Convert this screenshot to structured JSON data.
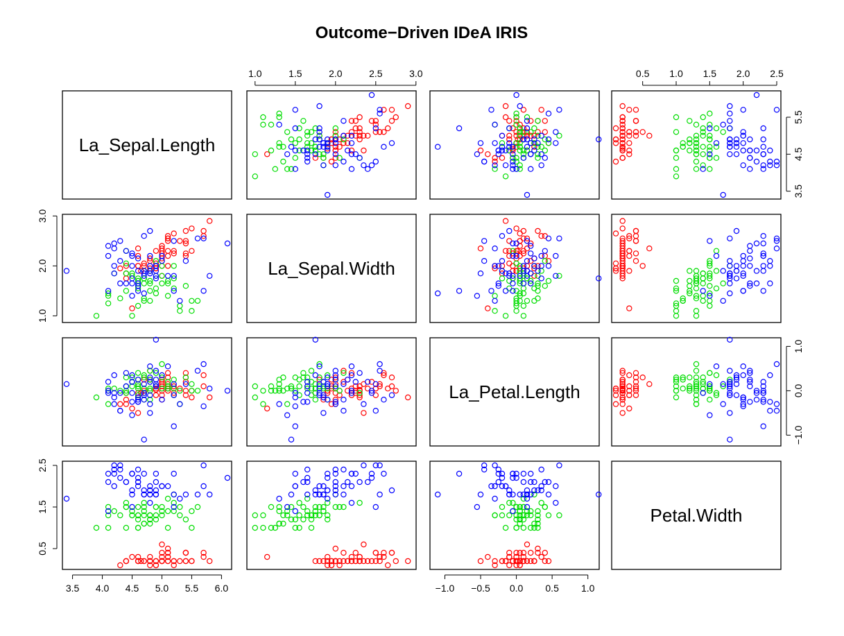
{
  "chart_data": {
    "type": "scatter",
    "subtype": "pairs",
    "title": "Outcome−Driven IDeA IRIS",
    "variables": [
      "La_Sepal.Length",
      "La_Sepal.Width",
      "La_Petal.Length",
      "Petal.Width"
    ],
    "ranges": {
      "La_Sepal.Length": [
        3.4,
        6.1
      ],
      "La_Sepal.Width": [
        0.95,
        2.95
      ],
      "La_Petal.Length": [
        -1.15,
        1.1
      ],
      "Petal.Width": [
        0.1,
        2.5
      ]
    },
    "tick_labels": {
      "La_Sepal.Length": [
        "3.5",
        "4.0",
        "4.5",
        "5.0",
        "5.5",
        "6.0"
      ],
      "La_Sepal.Width": [
        "1.0",
        "1.5",
        "2.0",
        "2.5",
        "3.0"
      ],
      "La_Petal.Length": [
        "−1.0",
        "−0.5",
        "0.0",
        "0.5",
        "1.0"
      ],
      "Petal.Width": [
        "0.5",
        "1.0",
        "1.5",
        "2.0",
        "2.5"
      ]
    },
    "side_ticks": {
      "La_Sepal.Length": [
        "3.5",
        "4.5",
        "5.5"
      ],
      "La_Sepal.Width": [
        "1.0",
        "2.0",
        "3.0"
      ],
      "La_Petal.Length": [
        "−1.0",
        "0.0",
        "1.0"
      ],
      "Petal.Width": [
        "0.5",
        "1.5",
        "2.5"
      ]
    },
    "grid": false,
    "legend": "none",
    "colors": {
      "setosa": "#ff0000",
      "versicolor": "#00dd00",
      "virginica": "#0000ff"
    },
    "series": [
      {
        "color": "#ff0000",
        "points": [
          [
            4.9,
            2.3,
            0.02,
            0.2
          ],
          [
            4.65,
            1.9,
            -0.05,
            0.2
          ],
          [
            4.7,
            2.05,
            0.0,
            0.2
          ],
          [
            4.6,
            2.0,
            0.15,
            0.2
          ],
          [
            5.0,
            2.4,
            0.05,
            0.2
          ],
          [
            5.4,
            2.7,
            0.3,
            0.4
          ],
          [
            4.6,
            2.2,
            -0.1,
            0.3
          ],
          [
            5.0,
            2.25,
            0.1,
            0.2
          ],
          [
            4.4,
            1.75,
            -0.05,
            0.2
          ],
          [
            4.9,
            1.95,
            0.05,
            0.1
          ],
          [
            5.4,
            2.45,
            0.2,
            0.2
          ],
          [
            4.8,
            2.15,
            0.25,
            0.2
          ],
          [
            4.8,
            1.9,
            0.0,
            0.1
          ],
          [
            4.3,
            1.95,
            -0.3,
            0.1
          ],
          [
            5.8,
            2.9,
            -0.15,
            0.2
          ],
          [
            5.7,
            2.7,
            0.1,
            0.4
          ],
          [
            5.4,
            2.5,
            -0.1,
            0.4
          ],
          [
            5.1,
            2.3,
            0.0,
            0.3
          ],
          [
            5.7,
            2.6,
            0.35,
            0.3
          ],
          [
            5.1,
            2.55,
            0.1,
            0.3
          ],
          [
            5.4,
            2.2,
            0.4,
            0.2
          ],
          [
            5.1,
            2.5,
            0.05,
            0.4
          ],
          [
            4.6,
            2.35,
            -0.5,
            0.2
          ],
          [
            5.1,
            2.0,
            0.3,
            0.5
          ],
          [
            4.8,
            2.1,
            0.45,
            0.2
          ],
          [
            5.0,
            1.8,
            0.25,
            0.2
          ],
          [
            5.0,
            2.1,
            0.2,
            0.4
          ],
          [
            5.2,
            2.3,
            0.1,
            0.2
          ],
          [
            5.2,
            2.25,
            -0.05,
            0.2
          ],
          [
            4.7,
            2.0,
            0.25,
            0.2
          ],
          [
            4.8,
            1.95,
            0.25,
            0.2
          ],
          [
            5.4,
            2.25,
            0.0,
            0.4
          ],
          [
            5.2,
            2.65,
            0.05,
            0.1
          ],
          [
            5.5,
            2.75,
            0.0,
            0.2
          ],
          [
            4.9,
            1.95,
            0.1,
            0.2
          ],
          [
            5.0,
            2.0,
            -0.2,
            0.2
          ],
          [
            5.5,
            2.3,
            -0.15,
            0.2
          ],
          [
            4.9,
            2.05,
            -0.1,
            0.1
          ],
          [
            4.4,
            1.85,
            -0.2,
            0.2
          ],
          [
            5.1,
            2.2,
            0.05,
            0.2
          ],
          [
            5.0,
            2.3,
            -0.1,
            0.3
          ],
          [
            4.5,
            1.15,
            -0.4,
            0.3
          ],
          [
            4.4,
            2.0,
            -0.3,
            0.2
          ],
          [
            5.0,
            2.35,
            0.15,
            0.6
          ],
          [
            5.1,
            2.6,
            0.4,
            0.4
          ],
          [
            4.8,
            1.9,
            0.0,
            0.3
          ],
          [
            5.1,
            2.55,
            0.15,
            0.2
          ],
          [
            4.6,
            2.0,
            -0.05,
            0.2
          ],
          [
            5.3,
            2.5,
            0.05,
            0.2
          ],
          [
            5.0,
            2.15,
            0.0,
            0.2
          ]
        ]
      },
      {
        "color": "#00dd00",
        "points": [
          [
            4.2,
            1.85,
            0.05,
            1.4
          ],
          [
            4.6,
            1.6,
            0.4,
            1.5
          ],
          [
            4.4,
            1.85,
            0.1,
            1.5
          ],
          [
            4.8,
            1.7,
            0.45,
            1.3
          ],
          [
            4.1,
            1.45,
            0.05,
            1.5
          ],
          [
            5.3,
            1.1,
            -0.3,
            1.3
          ],
          [
            4.7,
            1.9,
            0.35,
            1.6
          ],
          [
            4.6,
            1.55,
            0.25,
            1.0
          ],
          [
            4.1,
            1.4,
            -0.3,
            1.3
          ],
          [
            5.5,
            1.3,
            0.15,
            1.4
          ],
          [
            5.5,
            1.1,
            0.0,
            1.0
          ],
          [
            4.9,
            1.8,
            0.1,
            1.5
          ],
          [
            4.6,
            1.2,
            0.1,
            1.0
          ],
          [
            5.0,
            1.65,
            0.3,
            1.4
          ],
          [
            4.6,
            1.7,
            -0.1,
            1.3
          ],
          [
            4.5,
            1.85,
            0.2,
            1.4
          ],
          [
            5.0,
            2.0,
            0.05,
            1.5
          ],
          [
            5.1,
            1.7,
            0.2,
            1.0
          ],
          [
            5.3,
            1.2,
            0.0,
            1.5
          ],
          [
            4.7,
            1.3,
            0.05,
            1.1
          ],
          [
            5.2,
            2.0,
            0.25,
            1.8
          ],
          [
            4.9,
            1.55,
            0.1,
            1.3
          ],
          [
            5.6,
            1.3,
            0.0,
            1.5
          ],
          [
            5.4,
            1.6,
            0.3,
            1.2
          ],
          [
            4.7,
            1.65,
            0.05,
            1.3
          ],
          [
            4.7,
            1.75,
            -0.05,
            1.4
          ],
          [
            5.1,
            1.4,
            0.05,
            1.4
          ],
          [
            5.1,
            1.65,
            0.1,
            1.7
          ],
          [
            4.7,
            1.75,
            -0.2,
            1.5
          ],
          [
            4.1,
            1.25,
            0.0,
            1.0
          ],
          [
            4.7,
            1.35,
            0.3,
            1.1
          ],
          [
            4.4,
            1.5,
            0.3,
            1.0
          ],
          [
            4.6,
            1.7,
            0.05,
            1.2
          ],
          [
            5.2,
            1.55,
            -0.1,
            1.6
          ],
          [
            4.4,
            2.05,
            0.0,
            1.5
          ],
          [
            4.4,
            2.3,
            -0.05,
            1.6
          ],
          [
            4.9,
            2.1,
            0.4,
            1.5
          ],
          [
            4.5,
            1.0,
            0.1,
            1.3
          ],
          [
            4.8,
            1.9,
            -0.2,
            1.3
          ],
          [
            4.3,
            1.35,
            0.0,
            1.3
          ],
          [
            4.9,
            1.45,
            0.1,
            1.2
          ],
          [
            5.2,
            1.75,
            0.05,
            1.4
          ],
          [
            4.8,
            1.5,
            0.0,
            1.2
          ],
          [
            3.9,
            1.0,
            -0.15,
            1.0
          ],
          [
            4.8,
            1.65,
            0.2,
            1.3
          ],
          [
            4.8,
            1.9,
            0.05,
            1.2
          ],
          [
            4.5,
            1.8,
            0.3,
            1.3
          ],
          [
            5.0,
            1.8,
            0.6,
            1.3
          ],
          [
            4.8,
            1.3,
            0.25,
            1.1
          ],
          [
            4.6,
            1.75,
            0.15,
            1.3
          ]
        ]
      },
      {
        "color": "#0000ff",
        "points": [
          [
            4.2,
            2.35,
            -0.3,
            2.5
          ],
          [
            4.5,
            1.75,
            0.35,
            1.9
          ],
          [
            4.9,
            2.0,
            0.45,
            2.1
          ],
          [
            4.8,
            1.85,
            0.2,
            1.8
          ],
          [
            4.6,
            1.9,
            -0.2,
            2.2
          ],
          [
            4.4,
            2.3,
            0.4,
            2.1
          ],
          [
            5.3,
            1.3,
            -0.3,
            1.7
          ],
          [
            5.2,
            1.8,
            -0.1,
            1.8
          ],
          [
            4.5,
            1.65,
            0.2,
            1.8
          ],
          [
            5.7,
            2.55,
            0.6,
            2.5
          ],
          [
            5.0,
            2.2,
            0.35,
            2.0
          ],
          [
            4.7,
            1.9,
            0.15,
            1.9
          ],
          [
            4.6,
            2.15,
            0.25,
            2.1
          ],
          [
            4.6,
            1.5,
            -0.15,
            2.0
          ],
          [
            4.6,
            1.65,
            -0.25,
            2.4
          ],
          [
            4.5,
            2.25,
            0.2,
            2.3
          ],
          [
            5.4,
            2.1,
            0.15,
            1.8
          ],
          [
            6.1,
            2.45,
            0.0,
            2.2
          ],
          [
            5.2,
            1.5,
            -0.8,
            2.3
          ],
          [
            4.5,
            1.4,
            -0.55,
            1.5
          ],
          [
            4.1,
            2.2,
            0.0,
            2.3
          ],
          [
            4.2,
            1.85,
            -0.15,
            2.0
          ],
          [
            4.8,
            2.0,
            -0.3,
            2.0
          ],
          [
            4.9,
            1.8,
            0.15,
            1.8
          ],
          [
            4.1,
            2.4,
            0.2,
            2.1
          ],
          [
            5.6,
            2.55,
            0.45,
            1.8
          ],
          [
            4.7,
            1.85,
            -0.1,
            1.8
          ],
          [
            4.9,
            2.0,
            0.1,
            1.8
          ],
          [
            4.4,
            1.65,
            0.1,
            2.1
          ],
          [
            4.8,
            2.2,
            0.55,
            1.6
          ],
          [
            4.9,
            2.0,
            0.25,
            1.9
          ],
          [
            5.1,
            1.8,
            0.55,
            2.0
          ],
          [
            4.3,
            1.65,
            -0.05,
            2.2
          ],
          [
            5.2,
            2.5,
            0.15,
            1.5
          ],
          [
            4.1,
            1.5,
            -0.05,
            1.4
          ],
          [
            4.7,
            2.6,
            -0.2,
            2.3
          ],
          [
            4.3,
            2.1,
            -0.45,
            2.4
          ],
          [
            4.7,
            1.8,
            -0.05,
            1.8
          ],
          [
            5.8,
            1.8,
            0.05,
            1.8
          ],
          [
            4.6,
            1.6,
            -0.25,
            2.1
          ],
          [
            4.2,
            2.0,
            0.35,
            2.4
          ],
          [
            4.9,
            1.9,
            0.1,
            2.3
          ],
          [
            4.8,
            2.7,
            -0.1,
            1.9
          ],
          [
            4.2,
            2.45,
            -0.05,
            2.3
          ],
          [
            4.3,
            2.5,
            -0.45,
            2.5
          ],
          [
            4.5,
            2.2,
            -0.05,
            2.3
          ],
          [
            4.8,
            1.9,
            0.3,
            1.9
          ],
          [
            5.0,
            2.1,
            -0.2,
            2.0
          ],
          [
            4.5,
            2.0,
            -0.25,
            2.3
          ],
          [
            4.8,
            1.85,
            -0.5,
            1.8
          ],
          [
            3.4,
            1.9,
            0.15,
            1.7
          ],
          [
            5.7,
            1.5,
            -0.35,
            2.0
          ],
          [
            4.9,
            1.75,
            1.15,
            1.8
          ],
          [
            4.7,
            1.45,
            -1.1,
            1.8
          ]
        ]
      }
    ]
  }
}
